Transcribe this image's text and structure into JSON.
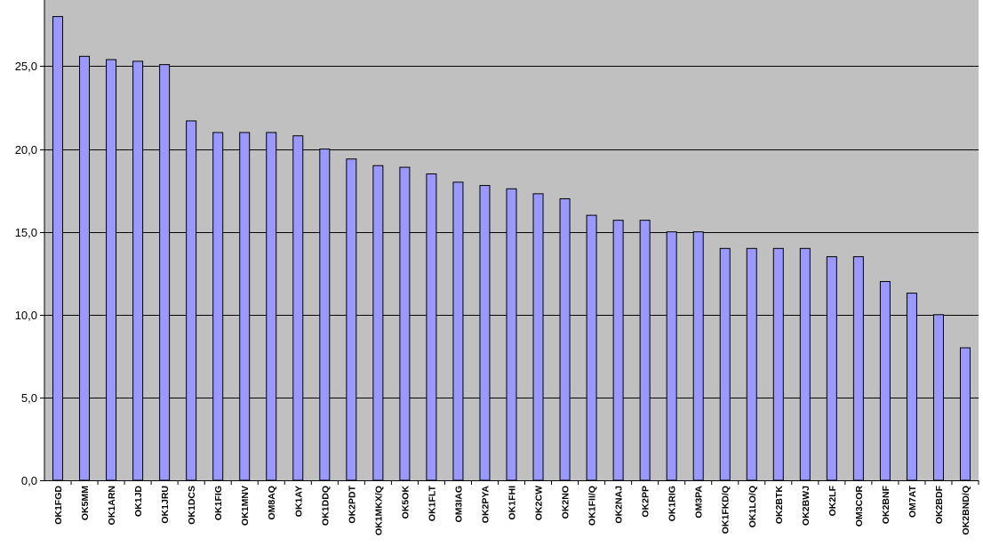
{
  "chart_data": {
    "type": "bar",
    "title": "",
    "xlabel": "",
    "ylabel": "",
    "ylim": [
      0,
      29
    ],
    "grid": true,
    "legend": "none",
    "colors": {
      "plot_background": "#c0c0c0",
      "bar_fill": "#9999ff",
      "bar_stroke": "#000000",
      "gridline": "#000000",
      "page_background": "#ffffff"
    },
    "yticks": [
      {
        "value": 0,
        "label": "0,0"
      },
      {
        "value": 5,
        "label": "5,0"
      },
      {
        "value": 10,
        "label": "10,0"
      },
      {
        "value": 15,
        "label": "15,0"
      },
      {
        "value": 20,
        "label": "20,0"
      },
      {
        "value": 25,
        "label": "25,0"
      }
    ],
    "categories": [
      "OK1FGD",
      "OK5MM",
      "OK1ARN",
      "OK1JD",
      "OK1JRU",
      "OK1DCS",
      "OK1FIG",
      "OK1MNV",
      "OM8AQ",
      "OK1AY",
      "OK1DDQ",
      "OK2PDT",
      "OK1MKX/Q",
      "OK5OK",
      "OK1FLT",
      "OM3IAG",
      "OK2PYA",
      "OK1FHI",
      "OK2CW",
      "OK2NO",
      "OK1FII/Q",
      "OK2NAJ",
      "OK2PP",
      "OK1RIG",
      "OM3PA",
      "OK1FKD/Q",
      "OK1LO/Q",
      "OK2BTK",
      "OK2BWJ",
      "OK2LF",
      "OM3COR",
      "OK2BNF",
      "OM7AT",
      "OK2BDF",
      "OK2BND/Q"
    ],
    "values": [
      28.0,
      25.6,
      25.4,
      25.3,
      25.1,
      21.7,
      21.0,
      21.0,
      21.0,
      20.8,
      20.0,
      19.4,
      19.0,
      18.9,
      18.5,
      18.0,
      17.8,
      17.6,
      17.3,
      17.0,
      16.0,
      15.7,
      15.7,
      15.0,
      15.0,
      14.0,
      14.0,
      14.0,
      14.0,
      13.5,
      13.5,
      12.0,
      11.3,
      10.0,
      8.0
    ]
  }
}
